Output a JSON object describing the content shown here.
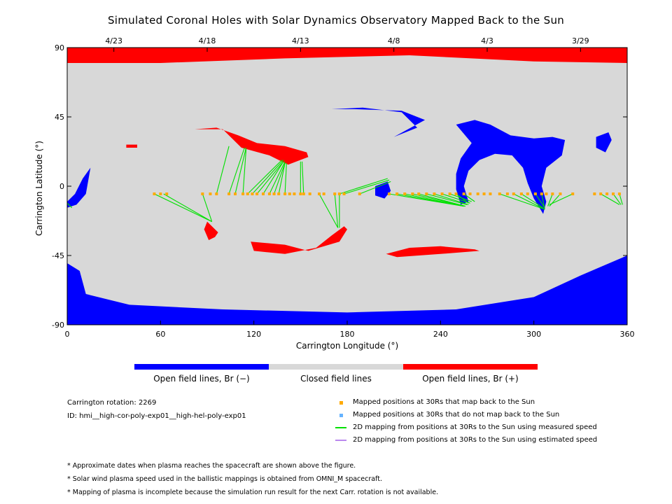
{
  "title": "Simulated Coronal Holes with Solar Dynamics Observatory Mapped Back to the Sun",
  "colors": {
    "negative": "#0000ff",
    "closed": "#d8d8d8",
    "positive": "#ff0000",
    "mapped_back": "#ffaa00",
    "not_mapped": "#66b3ff",
    "measured_speed": "#00e000",
    "estimated_speed": "#bb88ee"
  },
  "colorbar": {
    "labels": [
      "Open field lines, Br (−)",
      "Closed field lines",
      "Open field lines, Br (+)"
    ]
  },
  "info": {
    "rotation": "Carrington rotation: 2269",
    "id": "ID: hmi__high-cor-poly-exp01__high-hel-poly-exp01"
  },
  "legend": {
    "items": [
      {
        "label": "Mapped positions at 30Rs that map back to the Sun",
        "symbol": "square",
        "color": "#ffaa00"
      },
      {
        "label": "Mapped positions at 30Rs that do not map back to the Sun",
        "symbol": "square",
        "color": "#66b3ff"
      },
      {
        "label": "2D mapping from positions at 30Rs to the Sun using measured speed",
        "symbol": "line",
        "color": "#00e000"
      },
      {
        "label": "2D mapping from positions at 30Rs to the Sun using estimated speed",
        "symbol": "line",
        "color": "#bb88ee"
      }
    ]
  },
  "notes": [
    "* Approximate dates when plasma reaches the spacecraft are shown above the figure.",
    "* Solar wind plasma speed used in the ballistic mappings is obtained from OMNI_M spacecraft.",
    "* Mapping of plasma is incomplete because the simulation run result for the next Carr. rotation is not available."
  ],
  "chart_data": {
    "type": "scatter",
    "title": "Simulated Coronal Holes with Solar Dynamics Observatory Mapped Back to the Sun",
    "xlabel": "Carrington Longitude (°)",
    "ylabel": "Carrington Latitude (°)",
    "xlim": [
      0,
      360
    ],
    "ylim": [
      -90,
      90
    ],
    "xticks": [
      0,
      60,
      120,
      180,
      240,
      300,
      360
    ],
    "yticks": [
      -90,
      -45,
      0,
      45,
      90
    ],
    "top_axis": {
      "labels": [
        "4/23",
        "4/18",
        "4/13",
        "4/8",
        "4/3",
        "3/29"
      ],
      "positions": [
        30,
        90,
        150,
        210,
        270,
        330
      ]
    },
    "regions": [
      {
        "polarity": "positive",
        "points": [
          [
            0,
            90
          ],
          [
            360,
            90
          ],
          [
            360,
            80
          ],
          [
            300,
            81
          ],
          [
            220,
            85
          ],
          [
            140,
            83
          ],
          [
            60,
            80
          ],
          [
            0,
            80
          ]
        ]
      },
      {
        "polarity": "negative",
        "points": [
          [
            0,
            -90
          ],
          [
            360,
            -90
          ],
          [
            360,
            -45
          ],
          [
            330,
            -58
          ],
          [
            300,
            -72
          ],
          [
            250,
            -80
          ],
          [
            180,
            -82
          ],
          [
            100,
            -80
          ],
          [
            40,
            -77
          ],
          [
            12,
            -70
          ],
          [
            8,
            -55
          ],
          [
            0,
            -50
          ]
        ]
      },
      {
        "polarity": "negative",
        "points": [
          [
            170,
            50
          ],
          [
            190,
            51
          ],
          [
            215,
            48
          ],
          [
            225,
            38
          ],
          [
            210,
            32
          ],
          [
            230,
            43
          ],
          [
            215,
            49
          ],
          [
            185,
            50
          ]
        ]
      },
      {
        "polarity": "negative",
        "points": [
          [
            250,
            40
          ],
          [
            262,
            43
          ],
          [
            272,
            40
          ],
          [
            285,
            33
          ],
          [
            300,
            31
          ],
          [
            312,
            32
          ],
          [
            320,
            30
          ],
          [
            318,
            20
          ],
          [
            308,
            12
          ],
          [
            305,
            0
          ],
          [
            308,
            -10
          ],
          [
            306,
            -18
          ],
          [
            300,
            -8
          ],
          [
            296,
            2
          ],
          [
            293,
            12
          ],
          [
            286,
            20
          ],
          [
            275,
            21
          ],
          [
            265,
            17
          ],
          [
            258,
            10
          ],
          [
            255,
            0
          ],
          [
            258,
            -10
          ],
          [
            253,
            -12
          ],
          [
            250,
            -2
          ],
          [
            250,
            8
          ],
          [
            253,
            18
          ],
          [
            260,
            28
          ]
        ]
      },
      {
        "polarity": "negative",
        "points": [
          [
            340,
            32
          ],
          [
            348,
            35
          ],
          [
            350,
            30
          ],
          [
            346,
            22
          ],
          [
            340,
            25
          ]
        ]
      },
      {
        "polarity": "negative",
        "points": [
          [
            0,
            -10
          ],
          [
            5,
            -5
          ],
          [
            10,
            5
          ],
          [
            15,
            12
          ],
          [
            12,
            -5
          ],
          [
            6,
            -12
          ],
          [
            0,
            -14
          ]
        ]
      },
      {
        "polarity": "negative",
        "points": [
          [
            198,
            0
          ],
          [
            206,
            3
          ],
          [
            208,
            -3
          ],
          [
            204,
            -8
          ],
          [
            198,
            -6
          ]
        ]
      },
      {
        "polarity": "positive",
        "points": [
          [
            82,
            37
          ],
          [
            100,
            37
          ],
          [
            112,
            25
          ],
          [
            130,
            20
          ],
          [
            142,
            14
          ],
          [
            155,
            19
          ],
          [
            154,
            22
          ],
          [
            140,
            26
          ],
          [
            122,
            28
          ],
          [
            110,
            33
          ],
          [
            96,
            38
          ]
        ]
      },
      {
        "polarity": "positive",
        "points": [
          [
            118,
            -36
          ],
          [
            140,
            -38
          ],
          [
            155,
            -42
          ],
          [
            175,
            -36
          ],
          [
            180,
            -28
          ],
          [
            178,
            -26
          ],
          [
            170,
            -32
          ],
          [
            160,
            -40
          ],
          [
            140,
            -44
          ],
          [
            120,
            -42
          ]
        ]
      },
      {
        "polarity": "positive",
        "points": [
          [
            205,
            -44
          ],
          [
            220,
            -40
          ],
          [
            240,
            -39
          ],
          [
            262,
            -41
          ],
          [
            265,
            -42
          ],
          [
            240,
            -44
          ],
          [
            212,
            -46
          ]
        ]
      },
      {
        "polarity": "positive",
        "points": [
          [
            90,
            -23
          ],
          [
            97,
            -30
          ],
          [
            95,
            -33
          ],
          [
            91,
            -35
          ],
          [
            88,
            -28
          ]
        ]
      },
      {
        "polarity": "positive",
        "points": [
          [
            38,
            27
          ],
          [
            45,
            27
          ],
          [
            45,
            25
          ],
          [
            38,
            25
          ]
        ]
      }
    ],
    "mapped_points": [
      [
        56,
        -5
      ],
      [
        60,
        -5
      ],
      [
        64,
        -5
      ],
      [
        87,
        -5
      ],
      [
        92,
        -5
      ],
      [
        96,
        -5
      ],
      [
        104,
        -5
      ],
      [
        108,
        -5
      ],
      [
        113,
        -5
      ],
      [
        116,
        -5
      ],
      [
        119,
        -5
      ],
      [
        122,
        -5
      ],
      [
        126,
        -5
      ],
      [
        130,
        -5
      ],
      [
        133,
        -5
      ],
      [
        136,
        -5
      ],
      [
        140,
        -5
      ],
      [
        143,
        -5
      ],
      [
        146,
        -5
      ],
      [
        150,
        -5
      ],
      [
        152,
        -5
      ],
      [
        156,
        -5
      ],
      [
        162,
        -5
      ],
      [
        165,
        -5
      ],
      [
        172,
        -5
      ],
      [
        175,
        -5
      ],
      [
        178,
        -5
      ],
      [
        188,
        -5
      ],
      [
        207,
        -5
      ],
      [
        212,
        -5
      ],
      [
        217,
        -5
      ],
      [
        222,
        -5
      ],
      [
        226,
        -5
      ],
      [
        231,
        -5
      ],
      [
        236,
        -5
      ],
      [
        241,
        -5
      ],
      [
        246,
        -5
      ],
      [
        250,
        -5
      ],
      [
        255,
        -5
      ],
      [
        259,
        -5
      ],
      [
        264,
        -5
      ],
      [
        268,
        -5
      ],
      [
        272,
        -5
      ],
      [
        278,
        -5
      ],
      [
        283,
        -5
      ],
      [
        287,
        -5
      ],
      [
        292,
        -5
      ],
      [
        296,
        -5
      ],
      [
        301,
        -5
      ],
      [
        305,
        -5
      ],
      [
        308,
        -5
      ],
      [
        312,
        -5
      ],
      [
        317,
        -5
      ],
      [
        325,
        -5
      ],
      [
        339,
        -5
      ],
      [
        343,
        -5
      ],
      [
        347,
        -5
      ],
      [
        351,
        -5
      ],
      [
        355,
        -5
      ]
    ],
    "mapping_lines": [
      {
        "from": [
          56,
          -5
        ],
        "to": [
          93,
          -23
        ]
      },
      {
        "from": [
          62,
          -5
        ],
        "to": [
          93,
          -23
        ]
      },
      {
        "from": [
          87,
          -5
        ],
        "to": [
          93,
          -23
        ]
      },
      {
        "from": [
          96,
          -5
        ],
        "to": [
          104,
          26
        ]
      },
      {
        "from": [
          104,
          -5
        ],
        "to": [
          114,
          25
        ]
      },
      {
        "from": [
          108,
          -5
        ],
        "to": [
          115,
          25
        ]
      },
      {
        "from": [
          113,
          -5
        ],
        "to": [
          115,
          24
        ]
      },
      {
        "from": [
          116,
          -5
        ],
        "to": [
          138,
          17
        ]
      },
      {
        "from": [
          119,
          -5
        ],
        "to": [
          139,
          17
        ]
      },
      {
        "from": [
          122,
          -5
        ],
        "to": [
          139,
          16
        ]
      },
      {
        "from": [
          126,
          -5
        ],
        "to": [
          139,
          16
        ]
      },
      {
        "from": [
          130,
          -5
        ],
        "to": [
          140,
          16
        ]
      },
      {
        "from": [
          133,
          -5
        ],
        "to": [
          140,
          15
        ]
      },
      {
        "from": [
          136,
          -5
        ],
        "to": [
          140,
          15
        ]
      },
      {
        "from": [
          140,
          -5
        ],
        "to": [
          141,
          15
        ]
      },
      {
        "from": [
          150,
          -5
        ],
        "to": [
          150,
          16
        ]
      },
      {
        "from": [
          152,
          -5
        ],
        "to": [
          151,
          16
        ]
      },
      {
        "from": [
          162,
          -5
        ],
        "to": [
          174,
          -27
        ]
      },
      {
        "from": [
          172,
          -5
        ],
        "to": [
          174,
          -27
        ]
      },
      {
        "from": [
          175,
          -5
        ],
        "to": [
          175,
          -27
        ]
      },
      {
        "from": [
          175,
          -5
        ],
        "to": [
          206,
          5
        ]
      },
      {
        "from": [
          178,
          -5
        ],
        "to": [
          207,
          4
        ]
      },
      {
        "from": [
          188,
          -5
        ],
        "to": [
          208,
          3
        ]
      },
      {
        "from": [
          207,
          -5
        ],
        "to": [
          255,
          -13
        ]
      },
      {
        "from": [
          212,
          -5
        ],
        "to": [
          255,
          -13
        ]
      },
      {
        "from": [
          217,
          -5
        ],
        "to": [
          255,
          -13
        ]
      },
      {
        "from": [
          222,
          -5
        ],
        "to": [
          256,
          -13
        ]
      },
      {
        "from": [
          226,
          -5
        ],
        "to": [
          256,
          -13
        ]
      },
      {
        "from": [
          231,
          -5
        ],
        "to": [
          257,
          -12
        ]
      },
      {
        "from": [
          236,
          -5
        ],
        "to": [
          258,
          -12
        ]
      },
      {
        "from": [
          241,
          -5
        ],
        "to": [
          259,
          -11
        ]
      },
      {
        "from": [
          246,
          -5
        ],
        "to": [
          260,
          -10
        ]
      },
      {
        "from": [
          250,
          -5
        ],
        "to": [
          258,
          -11
        ]
      },
      {
        "from": [
          255,
          -5
        ],
        "to": [
          262,
          -10
        ]
      },
      {
        "from": [
          278,
          -5
        ],
        "to": [
          307,
          -15
        ]
      },
      {
        "from": [
          287,
          -5
        ],
        "to": [
          307,
          -15
        ]
      },
      {
        "from": [
          292,
          -5
        ],
        "to": [
          306,
          -14
        ]
      },
      {
        "from": [
          301,
          -5
        ],
        "to": [
          307,
          -14
        ]
      },
      {
        "from": [
          305,
          -5
        ],
        "to": [
          307,
          -15
        ]
      },
      {
        "from": [
          312,
          -5
        ],
        "to": [
          309,
          -13
        ]
      },
      {
        "from": [
          317,
          -5
        ],
        "to": [
          310,
          -13
        ]
      },
      {
        "from": [
          325,
          -5
        ],
        "to": [
          310,
          -12
        ]
      },
      {
        "from": [
          343,
          -5
        ],
        "to": [
          355,
          -12
        ]
      },
      {
        "from": [
          351,
          -5
        ],
        "to": [
          356,
          -12
        ]
      },
      {
        "from": [
          355,
          -5
        ],
        "to": [
          357,
          -12
        ]
      },
      {
        "from": [
          0,
          -11
        ],
        "to": [
          3,
          -14
        ]
      }
    ]
  }
}
